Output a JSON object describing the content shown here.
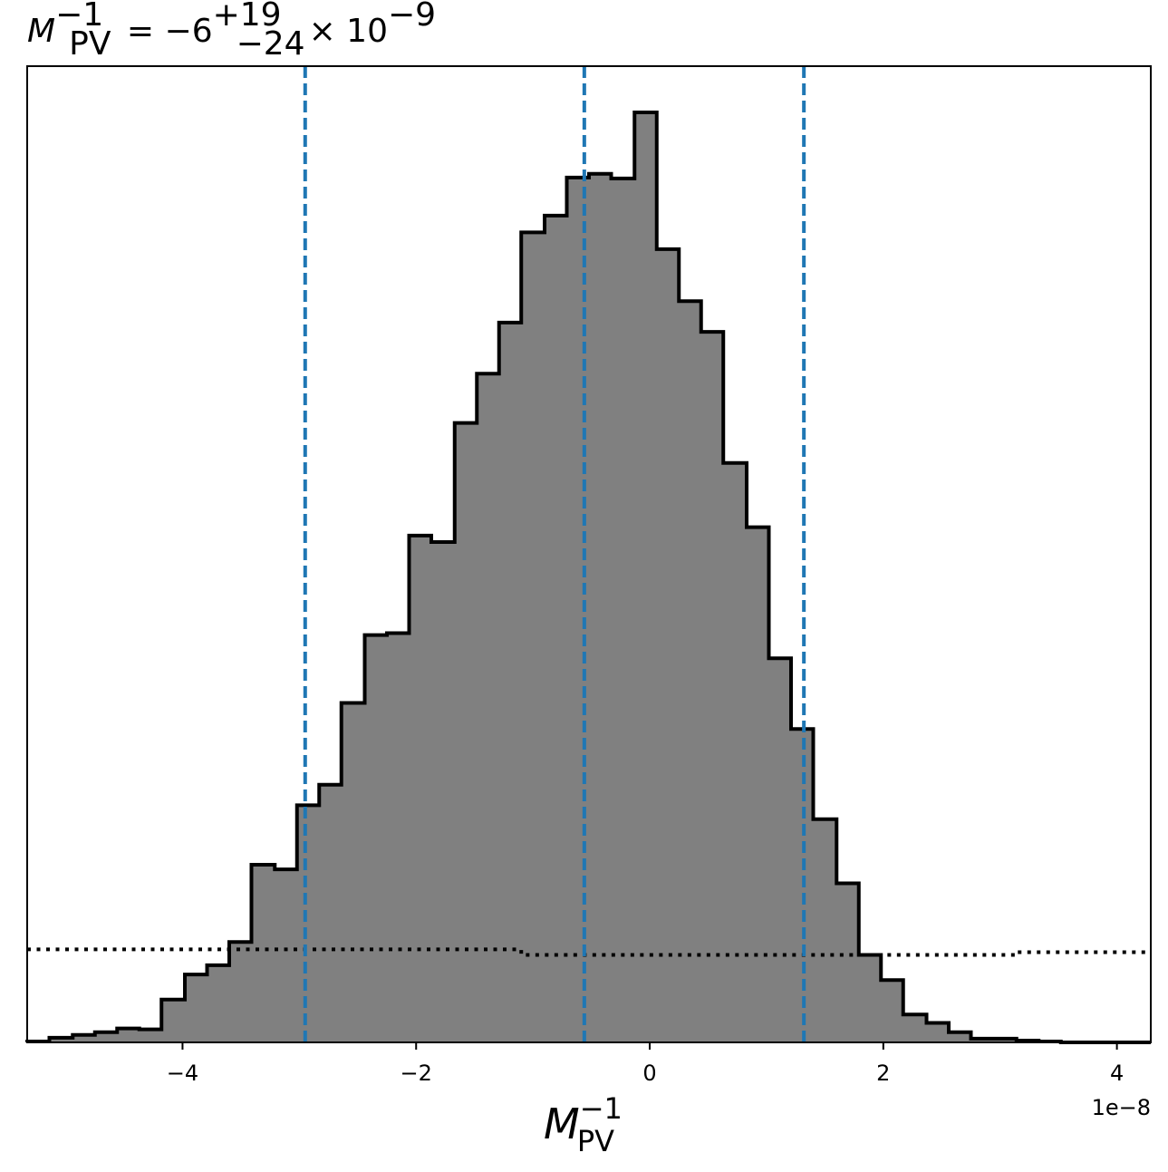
{
  "chart_data": {
    "type": "histogram",
    "title": {
      "symbol": "M",
      "subscript": "PV",
      "superscript": "−1",
      "equals": " = −6",
      "err_plus": "+19",
      "err_minus": "−24",
      "times": "× 10",
      "exponent": "−9"
    },
    "xlabel": {
      "symbol": "M",
      "subscript": "PV",
      "superscript": "−1"
    },
    "x_offset_text": "1e−8",
    "xlim": [
      -5.33,
      4.29
    ],
    "ylim": [
      0,
      1
    ],
    "x_ticks": [
      -4,
      -2,
      0,
      2,
      4
    ],
    "x_tick_labels": [
      "−4",
      "−2",
      "0",
      "2",
      "4"
    ],
    "bins": {
      "edges": [
        -5.33,
        -5.14,
        -4.94,
        -4.75,
        -4.56,
        -4.37,
        -4.18,
        -3.98,
        -3.79,
        -3.6,
        -3.41,
        -3.21,
        -3.02,
        -2.83,
        -2.64,
        -2.44,
        -2.25,
        -2.06,
        -1.87,
        -1.67,
        -1.48,
        -1.29,
        -1.1,
        -0.9,
        -0.71,
        -0.52,
        -0.33,
        -0.13,
        0.06,
        0.25,
        0.44,
        0.63,
        0.83,
        1.02,
        1.21,
        1.4,
        1.6,
        1.79,
        1.98,
        2.17,
        2.37,
        2.56,
        2.75,
        2.94,
        3.14,
        3.33,
        3.52,
        3.71,
        3.91,
        4.1,
        4.29
      ],
      "heights": [
        0.001,
        0.005,
        0.008,
        0.011,
        0.015,
        0.014,
        0.046,
        0.073,
        0.083,
        0.108,
        0.191,
        0.186,
        0.255,
        0.277,
        0.365,
        0.438,
        0.44,
        0.545,
        0.538,
        0.666,
        0.719,
        0.774,
        0.871,
        0.889,
        0.93,
        0.934,
        0.929,
        1.0,
        0.853,
        0.797,
        0.764,
        0.623,
        0.554,
        0.413,
        0.337,
        0.24,
        0.171,
        0.094,
        0.067,
        0.03,
        0.021,
        0.011,
        0.004,
        0.004,
        0.002,
        0.001,
        0.0,
        0.0,
        0.0,
        0.0
      ]
    },
    "prior": {
      "edges": [
        -5.33,
        -1.1,
        3.14,
        4.29
      ],
      "heights": [
        0.1,
        0.094,
        0.097
      ]
    },
    "quantile_lines": [
      -2.95,
      -0.56,
      1.32
    ],
    "colors": {
      "fill": "#808080",
      "edge": "#000000",
      "quantile": "#1f77b4",
      "prior": "#000000"
    }
  }
}
